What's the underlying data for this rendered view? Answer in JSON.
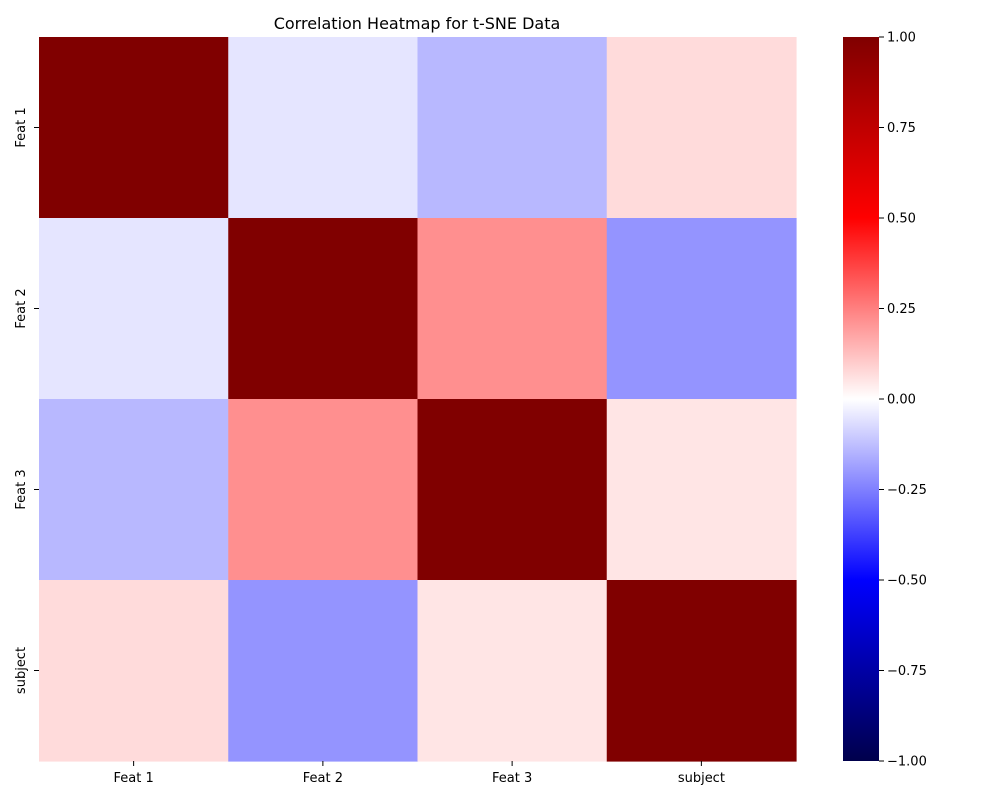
{
  "chart_data": {
    "type": "heatmap",
    "title": "Correlation Heatmap for t-SNE Data",
    "xlabel": "",
    "ylabel": "",
    "x_categories": [
      "Feat 1",
      "Feat 2",
      "Feat 3",
      "subject"
    ],
    "y_categories": [
      "Feat 1",
      "Feat 2",
      "Feat 3",
      "subject"
    ],
    "matrix": [
      [
        1.0,
        -0.05,
        -0.14,
        0.07
      ],
      [
        -0.05,
        1.0,
        0.22,
        -0.21
      ],
      [
        -0.14,
        0.22,
        1.0,
        0.05
      ],
      [
        0.07,
        -0.21,
        0.05,
        1.0
      ]
    ],
    "colormap": "seismic",
    "vmin": -1.0,
    "vmax": 1.0,
    "colorbar_ticks": [
      "1.00",
      "0.75",
      "0.50",
      "0.25",
      "0.00",
      "−0.25",
      "−0.50",
      "−0.75",
      "−1.00"
    ],
    "colorbar_tick_values": [
      1.0,
      0.75,
      0.5,
      0.25,
      0.0,
      -0.25,
      -0.5,
      -0.75,
      -1.0
    ],
    "grid": false,
    "annotations": false
  }
}
